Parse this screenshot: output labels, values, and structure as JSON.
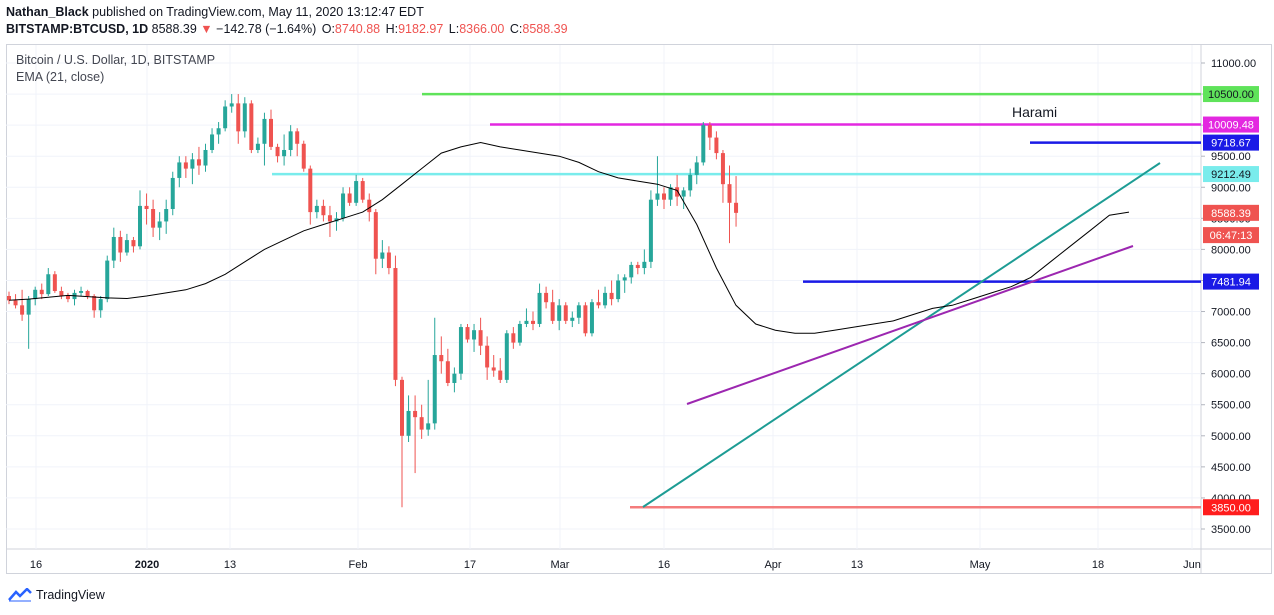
{
  "header": {
    "author": "Nathan_Black",
    "published_text": " published on TradingView.com, May 11, 2020 13:12:47 EDT",
    "symbol": "BITSTAMP:BTCUSD, 1D",
    "last": "8588.39",
    "change_arrow": "▼",
    "change": "−142.78 (−1.64%)",
    "o_label": "O:",
    "o": "8740.88",
    "h_label": "H:",
    "h": "9182.97",
    "l_label": "L:",
    "l": "8366.00",
    "c_label": "C:",
    "c": "8588.39"
  },
  "legend": {
    "title": "Bitcoin / U.S. Dollar, 1D, BITSTAMP",
    "indicator": "EMA (21, close)"
  },
  "annotation": {
    "text": "Harami"
  },
  "brand": {
    "name": "TradingView"
  },
  "colors": {
    "up": "#26a69a",
    "down": "#ef5350",
    "ema": "#000000",
    "green_line": "#5fe35a",
    "magenta_line": "#e328e0",
    "cyan_line": "#79ecec",
    "blue_line": "#1a1ae6",
    "red_line": "#f47c7c",
    "teal_trend": "#1d9c94",
    "purple_trend": "#9c27b0"
  },
  "chart_data": {
    "type": "candlestick",
    "title": "Bitcoin / U.S. Dollar, 1D, BITSTAMP",
    "xlabel": "",
    "ylabel": "",
    "ylim": [
      3200,
      11500
    ],
    "y_ticks": [
      "11000.00",
      "10500.00",
      "10000.00",
      "9500.00",
      "9000.00",
      "8500.00",
      "8000.00",
      "7500.00",
      "7000.00",
      "6500.00",
      "6000.00",
      "5500.00",
      "5000.00",
      "4500.00",
      "4000.00",
      "3500.00"
    ],
    "x_ticks": [
      "16",
      "2020",
      "13",
      "Feb",
      "17",
      "Mar",
      "16",
      "Apr",
      "13",
      "May",
      "18",
      "Jun"
    ],
    "horizontal_levels": [
      {
        "value": 10500.0,
        "label": "10500.00",
        "color": "#5fe35a",
        "text_color": "#131722"
      },
      {
        "value": 10009.48,
        "label": "10009.48",
        "color": "#e328e0",
        "text_color": "#ffffff"
      },
      {
        "value": 9718.67,
        "label": "9718.67",
        "color": "#1a1ae6",
        "text_color": "#ffffff"
      },
      {
        "value": 9212.49,
        "label": "9212.49",
        "color": "#79ecec",
        "text_color": "#131722"
      },
      {
        "value": 7481.94,
        "label": "7481.94",
        "color": "#1a1ae6",
        "text_color": "#ffffff"
      },
      {
        "value": 3850.0,
        "label": "3850.00",
        "color": "#f47c7c",
        "text_color": "#ffffff",
        "bg": "#ff1d1d"
      }
    ],
    "price_tags": [
      {
        "value": 8588.39,
        "label": "8588.39",
        "bg": "#ef5350"
      },
      {
        "value": 8230,
        "label": "06:47:13",
        "bg": "#ef5350"
      }
    ],
    "ema_21": [
      7180,
      7200,
      7230,
      7260,
      7240,
      7220,
      7210,
      7250,
      7300,
      7350,
      7450,
      7600,
      7800,
      8000,
      8150,
      8300,
      8400,
      8500,
      8600,
      8800,
      9050,
      9300,
      9550,
      9650,
      9720,
      9650,
      9600,
      9550,
      9500,
      9400,
      9250,
      9150,
      9100,
      9050,
      8950,
      8400,
      7700,
      7100,
      6800,
      6700,
      6650,
      6650,
      6700,
      6750,
      6800,
      6850,
      6950,
      7050,
      7100,
      7200,
      7300,
      7400,
      7550,
      7800,
      8050,
      8300,
      8550,
      8600
    ],
    "series": [
      {
        "name": "BTCUSD",
        "candles": [
          [
            7250,
            7320,
            7120,
            7180
          ],
          [
            7180,
            7280,
            7050,
            7100
          ],
          [
            7100,
            7350,
            6850,
            6950
          ],
          [
            6950,
            7250,
            6400,
            7200
          ],
          [
            7200,
            7400,
            7100,
            7350
          ],
          [
            7350,
            7450,
            7200,
            7280
          ],
          [
            7280,
            7700,
            7250,
            7600
          ],
          [
            7600,
            7650,
            7300,
            7330
          ],
          [
            7330,
            7400,
            7200,
            7250
          ],
          [
            7250,
            7300,
            7150,
            7200
          ],
          [
            7200,
            7350,
            7100,
            7300
          ],
          [
            7300,
            7400,
            7250,
            7330
          ],
          [
            7330,
            7350,
            7200,
            7250
          ],
          [
            7250,
            7280,
            6900,
            7020
          ],
          [
            7020,
            7250,
            6900,
            7200
          ],
          [
            7200,
            7900,
            7150,
            7820
          ],
          [
            7820,
            8350,
            7700,
            8200
          ],
          [
            8200,
            8300,
            7800,
            7950
          ],
          [
            7950,
            8250,
            7900,
            8150
          ],
          [
            8150,
            8200,
            7950,
            8050
          ],
          [
            8050,
            8950,
            8000,
            8700
          ],
          [
            8700,
            8900,
            8400,
            8650
          ],
          [
            8650,
            8800,
            8200,
            8350
          ],
          [
            8350,
            8600,
            8150,
            8450
          ],
          [
            8450,
            8800,
            8250,
            8650
          ],
          [
            8650,
            9250,
            8550,
            9150
          ],
          [
            9150,
            9500,
            9000,
            9400
          ],
          [
            9400,
            9500,
            9150,
            9300
          ],
          [
            9300,
            9550,
            9050,
            9450
          ],
          [
            9450,
            9650,
            9200,
            9350
          ],
          [
            9350,
            9700,
            9250,
            9600
          ],
          [
            9600,
            9950,
            9550,
            9850
          ],
          [
            9850,
            10050,
            9700,
            9950
          ],
          [
            9950,
            10400,
            9900,
            10300
          ],
          [
            10300,
            10500,
            10200,
            10350
          ],
          [
            10350,
            10500,
            9700,
            9900
          ],
          [
            9900,
            10450,
            9800,
            10350
          ],
          [
            10350,
            10400,
            9550,
            9600
          ],
          [
            9600,
            9800,
            9550,
            9700
          ],
          [
            9700,
            10200,
            9350,
            10100
          ],
          [
            10100,
            10250,
            9600,
            9650
          ],
          [
            9650,
            9700,
            9400,
            9500
          ],
          [
            9500,
            9850,
            9350,
            9600
          ],
          [
            9600,
            10000,
            9500,
            9900
          ],
          [
            9900,
            9950,
            9500,
            9700
          ],
          [
            9700,
            9750,
            9250,
            9300
          ],
          [
            9300,
            9350,
            8400,
            8600
          ],
          [
            8600,
            8800,
            8500,
            8700
          ],
          [
            8700,
            8800,
            8450,
            8550
          ],
          [
            8550,
            8700,
            8200,
            8450
          ],
          [
            8450,
            8600,
            8300,
            8500
          ],
          [
            8500,
            9000,
            8450,
            8900
          ],
          [
            8900,
            9000,
            8700,
            8750
          ],
          [
            8750,
            9200,
            8700,
            9100
          ],
          [
            9100,
            9150,
            8750,
            8800
          ],
          [
            8800,
            8900,
            8450,
            8600
          ],
          [
            8600,
            8650,
            7600,
            7850
          ],
          [
            7850,
            8150,
            7700,
            7950
          ],
          [
            7950,
            8050,
            7600,
            7700
          ],
          [
            7700,
            7900,
            5800,
            5900
          ],
          [
            5900,
            5950,
            3850,
            5000
          ],
          [
            5000,
            5650,
            4900,
            5400
          ],
          [
            5400,
            5650,
            4400,
            5300
          ],
          [
            5300,
            5500,
            4950,
            5100
          ],
          [
            5100,
            5900,
            5000,
            5200
          ],
          [
            5200,
            6900,
            5100,
            6300
          ],
          [
            6300,
            6600,
            6000,
            6200
          ],
          [
            6200,
            6400,
            5800,
            5850
          ],
          [
            5850,
            6100,
            5700,
            6000
          ],
          [
            6000,
            6800,
            5900,
            6750
          ],
          [
            6750,
            6800,
            6500,
            6550
          ],
          [
            6550,
            6800,
            6350,
            6700
          ],
          [
            6700,
            6900,
            6300,
            6450
          ],
          [
            6450,
            6600,
            5900,
            6100
          ],
          [
            6100,
            6300,
            5950,
            6050
          ],
          [
            6050,
            6250,
            5850,
            5900
          ],
          [
            5900,
            6700,
            5850,
            6650
          ],
          [
            6650,
            6750,
            6400,
            6500
          ],
          [
            6500,
            6850,
            6450,
            6800
          ],
          [
            6800,
            7050,
            6750,
            6850
          ],
          [
            6850,
            7000,
            6700,
            6800
          ],
          [
            6800,
            7450,
            6750,
            7300
          ],
          [
            7300,
            7400,
            7050,
            7150
          ],
          [
            7150,
            7350,
            6800,
            6850
          ],
          [
            6850,
            7200,
            6700,
            7100
          ],
          [
            7100,
            7150,
            6800,
            6850
          ],
          [
            6850,
            7000,
            6750,
            6900
          ],
          [
            6900,
            7150,
            6800,
            7100
          ],
          [
            7100,
            7150,
            6600,
            6650
          ],
          [
            6650,
            7200,
            6600,
            7150
          ],
          [
            7150,
            7350,
            7050,
            7100
          ],
          [
            7100,
            7400,
            7050,
            7300
          ],
          [
            7300,
            7500,
            7100,
            7200
          ],
          [
            7200,
            7600,
            7150,
            7500
          ],
          [
            7500,
            7600,
            7300,
            7550
          ],
          [
            7550,
            7800,
            7450,
            7750
          ],
          [
            7750,
            7800,
            7600,
            7700
          ],
          [
            7700,
            8000,
            7600,
            7800
          ],
          [
            7800,
            8950,
            7700,
            8800
          ],
          [
            8800,
            9500,
            8700,
            8900
          ],
          [
            8900,
            9000,
            8650,
            8800
          ],
          [
            8800,
            9050,
            8700,
            9000
          ],
          [
            9000,
            9200,
            8700,
            8850
          ],
          [
            8850,
            9000,
            8650,
            8950
          ],
          [
            8950,
            9300,
            8850,
            9200
          ],
          [
            9200,
            9500,
            9050,
            9400
          ],
          [
            9400,
            10050,
            9350,
            10000
          ],
          [
            10000,
            10050,
            9600,
            9800
          ],
          [
            9800,
            9900,
            9450,
            9550
          ],
          [
            9550,
            9600,
            8750,
            9050
          ],
          [
            9050,
            9350,
            8100,
            8750
          ],
          [
            8750,
            9180,
            8366,
            8588
          ]
        ]
      }
    ]
  }
}
